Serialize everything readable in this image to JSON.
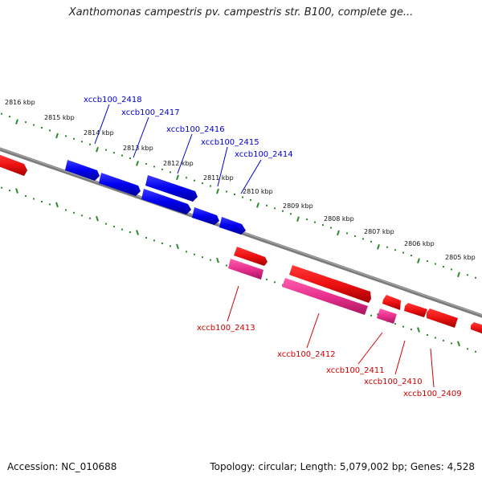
{
  "title": "Xanthomonas campestris pv. campestris str. B100, complete ge...",
  "footer": {
    "accession": "Accession: NC_010688",
    "summary": "Topology: circular; Length: 5,079,002 bp; Genes: 4,528"
  },
  "colors": {
    "backbone": "#7b7b7b",
    "tick_marks": "#2c8a2c",
    "forward_gene": "#0000ee",
    "reverse_gene": "#ee1111",
    "reverse_gene_alt": "#e8308e",
    "forward_label": "#0000cc",
    "reverse_label": "#cc0000"
  },
  "scale_labels": [
    "2816 kbp",
    "2815 kbp",
    "2814 kbp",
    "2813 kbp",
    "2812 kbp",
    "2811 kbp",
    "2810 kbp",
    "2809 kbp",
    "2808 kbp",
    "2807 kbp",
    "2806 kbp",
    "2805 kbp"
  ],
  "forward_gene_labels": [
    "xccb100_2418",
    "xccb100_2417",
    "xccb100_2416",
    "xccb100_2415",
    "xccb100_2414"
  ],
  "reverse_gene_labels": [
    "xccb100_2413",
    "xccb100_2412",
    "xccb100_2411",
    "xccb100_2410",
    "xccb100_2409"
  ]
}
